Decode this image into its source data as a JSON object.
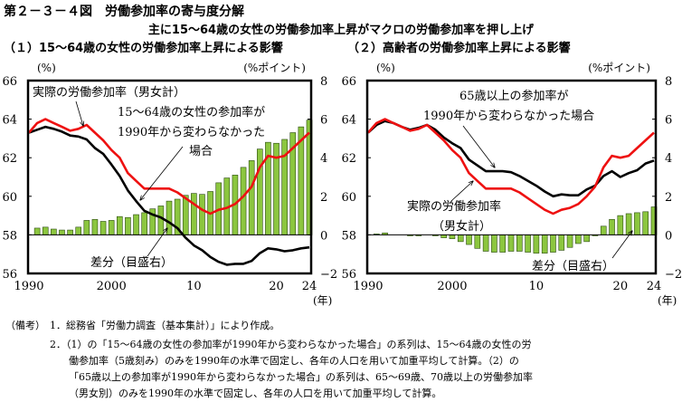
{
  "title": "第２－３－４図　労働参加率の寄与度分解",
  "subtitle": "主に15～64歳の女性の労働参加率上昇がマクロの労働参加率を押し上げ",
  "notes": {
    "label": "（備考）",
    "n1": "1．総務省「労働力調査（基本集計）」により作成。",
    "n2_l1": "2．（1）の「15～64歳の女性の参加率が1990年から変わらなかった場合」の系列は、15～64歳の女性の労",
    "n2_l2": "働参加率（5歳刻み）のみを1990年の水準で固定し、各年の人口を用いて加重平均して計算。（2）の",
    "n2_l3": "「65歳以上の参加率が1990年から変わらなかった場合」の系列は、65～69歳、70歳以上の労働参加率",
    "n2_l4": "（男女別）のみを1990年の水準で固定し、各年の人口を用いて加重平均して計算。"
  },
  "colors": {
    "actual": "#ee1111",
    "counterfactual": "#000000",
    "bar_fill": "#8cc63f",
    "bar_stroke": "#2a4a10"
  },
  "chart_data": [
    {
      "type": "bar+line",
      "title": "（１）15～64歳の女性の労働参加率上昇による影響",
      "ylabel_left": "(%)",
      "ylabel_right": "(%ポイント)",
      "xlabel": "(年)",
      "ylim_left": [
        56,
        66
      ],
      "ylim_right": [
        -2,
        8
      ],
      "yticks_left": [
        "56",
        "58",
        "60",
        "62",
        "64",
        "66"
      ],
      "yticks_right": [
        "−2",
        "0",
        "2",
        "4",
        "6",
        "8"
      ],
      "xticks": [
        {
          "year": 1990,
          "label": "1990"
        },
        {
          "year": 2000,
          "label": "2000"
        },
        {
          "year": 2010,
          "label": "10"
        },
        {
          "year": 2020,
          "label": "20"
        },
        {
          "year": 2024,
          "label": "24"
        }
      ],
      "x": [
        1990,
        1991,
        1992,
        1993,
        1994,
        1995,
        1996,
        1997,
        1998,
        1999,
        2000,
        2001,
        2002,
        2003,
        2004,
        2005,
        2006,
        2007,
        2008,
        2009,
        2010,
        2011,
        2012,
        2013,
        2014,
        2015,
        2016,
        2017,
        2018,
        2019,
        2020,
        2021,
        2022,
        2023,
        2024
      ],
      "series": [
        {
          "name": "実際の労働参加率（男女計）",
          "kind": "line",
          "axis": "left",
          "values": [
            63.3,
            63.8,
            64.0,
            63.8,
            63.6,
            63.4,
            63.5,
            63.7,
            63.3,
            62.9,
            62.4,
            62.0,
            61.2,
            60.8,
            60.4,
            60.4,
            60.4,
            60.4,
            60.2,
            59.9,
            59.6,
            59.3,
            59.1,
            59.3,
            59.4,
            59.6,
            60.0,
            60.5,
            61.5,
            62.1,
            62.0,
            62.1,
            62.5,
            62.9,
            63.3
          ]
        },
        {
          "name": "15～64歳の女性の参加率が1990年から変わらなかった場合",
          "kind": "line",
          "axis": "left",
          "values": [
            63.3,
            63.45,
            63.6,
            63.5,
            63.35,
            63.15,
            63.1,
            62.95,
            62.5,
            62.2,
            61.65,
            61.05,
            60.3,
            59.75,
            59.25,
            59.05,
            58.9,
            58.65,
            58.35,
            57.85,
            57.45,
            57.2,
            56.85,
            56.6,
            56.45,
            56.5,
            56.5,
            56.65,
            57.05,
            57.3,
            57.25,
            57.15,
            57.2,
            57.3,
            57.35
          ]
        },
        {
          "name": "差分（目盛右）",
          "kind": "bar",
          "axis": "right",
          "values": [
            0,
            0.35,
            0.4,
            0.3,
            0.25,
            0.25,
            0.4,
            0.75,
            0.8,
            0.7,
            0.75,
            0.95,
            0.9,
            1.05,
            1.15,
            1.35,
            1.5,
            1.75,
            1.85,
            2.05,
            2.15,
            2.1,
            2.25,
            2.7,
            2.95,
            3.1,
            3.5,
            3.85,
            4.45,
            4.8,
            4.75,
            4.95,
            5.3,
            5.6,
            5.95
          ]
        }
      ],
      "annotations": {
        "actual_label": "実際の労働参加率（男女計）",
        "cf_l1": "15～64歳の女性の参加率が",
        "cf_l2": "1990年から変わらなかった",
        "cf_l3": "場合",
        "diff_label": "差分（目盛右）"
      }
    },
    {
      "type": "bar+line",
      "title": "（２）高齢者の労働参加率上昇による影響",
      "ylabel_left": "(%)",
      "ylabel_right": "(%ポイント)",
      "xlabel": "(年)",
      "ylim_left": [
        56,
        66
      ],
      "ylim_right": [
        -2,
        8
      ],
      "yticks_left": [
        "56",
        "58",
        "60",
        "62",
        "64",
        "66"
      ],
      "yticks_right": [
        "−2",
        "0",
        "2",
        "4",
        "6",
        "8"
      ],
      "xticks": [
        {
          "year": 1990,
          "label": "1990"
        },
        {
          "year": 2000,
          "label": "2000"
        },
        {
          "year": 2010,
          "label": "10"
        },
        {
          "year": 2020,
          "label": "20"
        },
        {
          "year": 2024,
          "label": "24"
        }
      ],
      "x": [
        1990,
        1991,
        1992,
        1993,
        1994,
        1995,
        1996,
        1997,
        1998,
        1999,
        2000,
        2001,
        2002,
        2003,
        2004,
        2005,
        2006,
        2007,
        2008,
        2009,
        2010,
        2011,
        2012,
        2013,
        2014,
        2015,
        2016,
        2017,
        2018,
        2019,
        2020,
        2021,
        2022,
        2023,
        2024
      ],
      "series": [
        {
          "name": "実際の労働参加率（男女計）",
          "kind": "line",
          "axis": "left",
          "values": [
            63.3,
            63.8,
            64.0,
            63.8,
            63.6,
            63.4,
            63.5,
            63.7,
            63.3,
            62.9,
            62.4,
            62.0,
            61.2,
            60.8,
            60.4,
            60.4,
            60.4,
            60.4,
            60.2,
            59.9,
            59.6,
            59.3,
            59.1,
            59.3,
            59.4,
            59.6,
            60.0,
            60.5,
            61.5,
            62.1,
            62.0,
            62.1,
            62.5,
            62.9,
            63.3
          ]
        },
        {
          "name": "65歳以上の参加率が1990年から変わらなかった場合",
          "kind": "line",
          "axis": "left",
          "values": [
            63.3,
            63.7,
            63.9,
            63.8,
            63.6,
            63.45,
            63.55,
            63.7,
            63.45,
            63.05,
            62.75,
            62.5,
            61.9,
            61.6,
            61.3,
            61.3,
            61.3,
            61.25,
            61.05,
            60.8,
            60.55,
            60.25,
            60.0,
            60.1,
            60.05,
            60.05,
            60.35,
            60.55,
            61.05,
            61.3,
            61.0,
            61.2,
            61.35,
            61.7,
            61.85
          ]
        },
        {
          "name": "差分（目盛右）",
          "kind": "bar",
          "axis": "right",
          "values": [
            0,
            0.05,
            0.1,
            0,
            0,
            -0.05,
            -0.05,
            0,
            -0.05,
            -0.15,
            -0.2,
            -0.35,
            -0.5,
            -0.7,
            -0.85,
            -0.9,
            -0.9,
            -0.85,
            -0.85,
            -0.9,
            -0.95,
            -0.95,
            -0.9,
            -0.8,
            -0.65,
            -0.45,
            -0.35,
            -0.05,
            0.45,
            0.8,
            1.0,
            1.1,
            1.15,
            1.2,
            1.45
          ]
        }
      ],
      "annotations": {
        "cf_l1": "65歳以上の参加率が",
        "cf_l2": "1990年から変わらなかった場合",
        "actual_l1": "実際の労働参加率",
        "actual_l2": "（男女計）",
        "diff_label": "差分（目盛右）"
      }
    }
  ]
}
